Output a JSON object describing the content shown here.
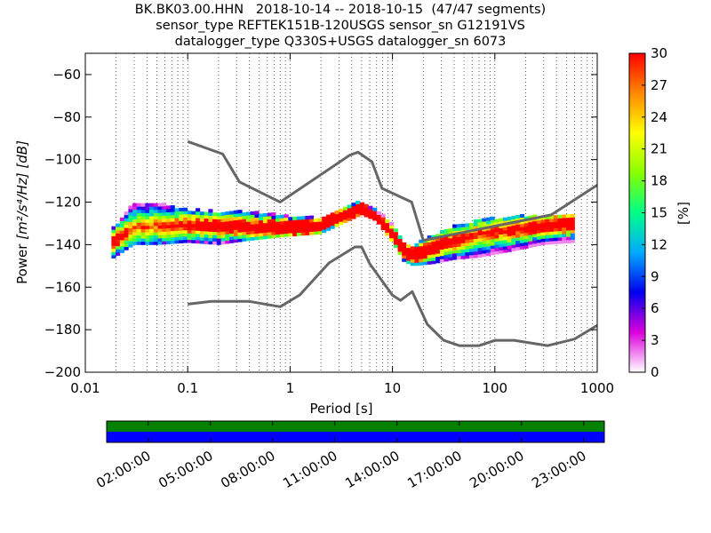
{
  "title": {
    "line1": "BK.BK03.00.HHN   2018-10-14 -- 2018-10-15  (47/47 segments)",
    "line2": "sensor_type REFTEK151B-120USGS sensor_sn G12191VS",
    "line3": "datalogger_type Q330S+USGS datalogger_sn 6073"
  },
  "chart_data": {
    "type": "heatmap",
    "xlabel": "Period [s]",
    "ylabel_prefix": "Power ",
    "ylabel_units": "[m²/s⁴/Hz] [dB]",
    "x_scale": "log",
    "xlim": [
      0.01,
      1000
    ],
    "ylim": [
      -200,
      -50
    ],
    "x_ticks": [
      {
        "value": 0.01,
        "label": "0.01"
      },
      {
        "value": 0.1,
        "label": "0.1"
      },
      {
        "value": 1,
        "label": "1"
      },
      {
        "value": 10,
        "label": "10"
      },
      {
        "value": 100,
        "label": "100"
      },
      {
        "value": 1000,
        "label": "1000"
      }
    ],
    "y_ticks": [
      {
        "value": -200,
        "label": "−200"
      },
      {
        "value": -180,
        "label": "−180"
      },
      {
        "value": -160,
        "label": "−160"
      },
      {
        "value": -140,
        "label": "−140"
      },
      {
        "value": -120,
        "label": "−120"
      },
      {
        "value": -100,
        "label": "−100"
      },
      {
        "value": -80,
        "label": "−80"
      },
      {
        "value": -60,
        "label": "−60"
      }
    ],
    "grid": "vertical dotted at minor period ticks",
    "colorbar": {
      "label": "[%]",
      "range": [
        0,
        30
      ],
      "ticks": [
        {
          "value": 0,
          "label": "0"
        },
        {
          "value": 3,
          "label": "3"
        },
        {
          "value": 6,
          "label": "6"
        },
        {
          "value": 9,
          "label": "9"
        },
        {
          "value": 12,
          "label": "12"
        },
        {
          "value": 15,
          "label": "15"
        },
        {
          "value": 18,
          "label": "18"
        },
        {
          "value": 21,
          "label": "21"
        },
        {
          "value": 24,
          "label": "24"
        },
        {
          "value": 27,
          "label": "27"
        },
        {
          "value": 30,
          "label": "30"
        }
      ],
      "colors": [
        "#ffffff",
        "#dd00dd",
        "#0000ee",
        "#00aaff",
        "#00ff88",
        "#88ff00",
        "#ffff00",
        "#ff8800",
        "#ff0000"
      ]
    },
    "series": [
      {
        "name": "",
        "kind": "high_noise_model",
        "color": "#666666",
        "points": [
          [
            0.1,
            -91.5
          ],
          [
            0.22,
            -97.4
          ],
          [
            0.32,
            -110.5
          ],
          [
            0.8,
            -120
          ],
          [
            3.8,
            -98
          ],
          [
            4.6,
            -96.5
          ],
          [
            6.3,
            -101
          ],
          [
            7.9,
            -113.5
          ],
          [
            15.4,
            -120
          ],
          [
            20,
            -138
          ],
          [
            354.8,
            -126
          ],
          [
            1000,
            -112
          ]
        ]
      },
      {
        "name": "",
        "kind": "low_noise_model",
        "color": "#666666",
        "points": [
          [
            0.1,
            -168
          ],
          [
            0.17,
            -166.7
          ],
          [
            0.4,
            -166.7
          ],
          [
            0.8,
            -169.2
          ],
          [
            1.24,
            -163.7
          ],
          [
            2.4,
            -148.6
          ],
          [
            4.3,
            -141.1
          ],
          [
            5,
            -141.1
          ],
          [
            6,
            -149
          ],
          [
            10,
            -163.8
          ],
          [
            12,
            -166.2
          ],
          [
            15.6,
            -162.1
          ],
          [
            21.9,
            -177.5
          ],
          [
            31.6,
            -185
          ],
          [
            45,
            -187.5
          ],
          [
            70,
            -187.5
          ],
          [
            101,
            -185
          ],
          [
            154,
            -185
          ],
          [
            328,
            -187.5
          ],
          [
            600,
            -184.4
          ],
          [
            1000,
            -178
          ]
        ]
      },
      {
        "name": "",
        "kind": "psd_mode",
        "points": [
          [
            0.018,
            -139
          ],
          [
            0.03,
            -132
          ],
          [
            0.05,
            -131
          ],
          [
            0.1,
            -131
          ],
          [
            0.2,
            -131
          ],
          [
            0.4,
            -132
          ],
          [
            1,
            -132
          ],
          [
            2,
            -131
          ],
          [
            3,
            -127
          ],
          [
            5,
            -123
          ],
          [
            7,
            -127
          ],
          [
            10,
            -135
          ],
          [
            13,
            -143
          ],
          [
            16,
            -145
          ],
          [
            25,
            -141
          ],
          [
            40,
            -138
          ],
          [
            70,
            -135
          ],
          [
            150,
            -133
          ],
          [
            300,
            -131
          ],
          [
            600,
            -130
          ]
        ]
      }
    ],
    "psd_spread": [
      {
        "period": 0.018,
        "lo": -147,
        "hi": -134
      },
      {
        "period": 0.03,
        "lo": -140,
        "hi": -121
      },
      {
        "period": 0.05,
        "lo": -140,
        "hi": -121
      },
      {
        "period": 0.1,
        "lo": -139,
        "hi": -124
      },
      {
        "period": 0.2,
        "lo": -140,
        "hi": -125
      },
      {
        "period": 0.4,
        "lo": -138,
        "hi": -125
      },
      {
        "period": 1,
        "lo": -136,
        "hi": -127
      },
      {
        "period": 2,
        "lo": -135,
        "hi": -128
      },
      {
        "period": 3,
        "lo": -131,
        "hi": -124
      },
      {
        "period": 5,
        "lo": -126,
        "hi": -120
      },
      {
        "period": 7,
        "lo": -129,
        "hi": -124
      },
      {
        "period": 10,
        "lo": -139,
        "hi": -131
      },
      {
        "period": 13,
        "lo": -148,
        "hi": -139
      },
      {
        "period": 16,
        "lo": -150,
        "hi": -141
      },
      {
        "period": 25,
        "lo": -149,
        "hi": -136
      },
      {
        "period": 40,
        "lo": -147,
        "hi": -132
      },
      {
        "period": 70,
        "lo": -146,
        "hi": -129
      },
      {
        "period": 150,
        "lo": -143,
        "hi": -127
      },
      {
        "period": 300,
        "lo": -140,
        "hi": -127
      },
      {
        "period": 600,
        "lo": -139,
        "hi": -126
      }
    ],
    "timeline": {
      "tick_labels": [
        "02:00:00",
        "05:00:00",
        "08:00:00",
        "11:00:00",
        "14:00:00",
        "17:00:00",
        "20:00:00",
        "23:00:00"
      ],
      "tick_hours": [
        2,
        5,
        8,
        11,
        14,
        17,
        20,
        23
      ],
      "range_hours": [
        0,
        24
      ],
      "rows": [
        {
          "kind": "data_availability",
          "color": "#008000"
        },
        {
          "kind": "psd_segments",
          "color": "#0000ff"
        }
      ]
    }
  }
}
